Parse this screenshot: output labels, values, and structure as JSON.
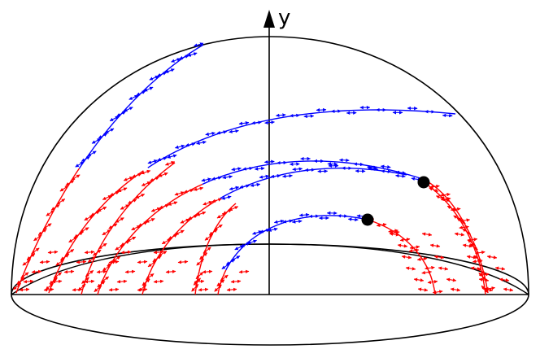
{
  "axis": {
    "y_label": "y"
  },
  "colors": {
    "outline": "#000000",
    "blue_field": "#0000ff",
    "red_field": "#ff0000",
    "marker": "#000000"
  },
  "marker_count": 2,
  "blue_arrow_count": 220,
  "red_arrow_count": 210
}
